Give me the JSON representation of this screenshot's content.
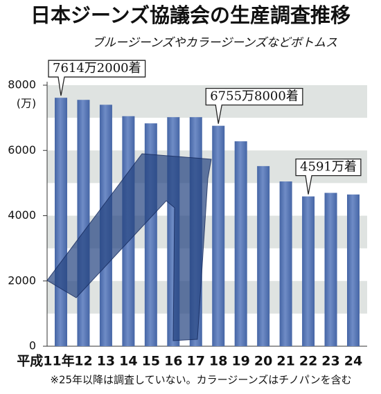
{
  "chart_data": {
    "type": "bar",
    "title": "日本ジーンズ協議会の生産調査推移",
    "subtitle": "ブルージーンズやカラージーンズなどボトムス",
    "y_axis_label": "(万)",
    "categories": [
      "平成11年",
      "12",
      "13",
      "14",
      "15",
      "16",
      "17",
      "18",
      "19",
      "20",
      "21",
      "22",
      "23",
      "24"
    ],
    "values": [
      7614.2,
      7550,
      7400,
      7050,
      6830,
      7020,
      7020,
      6755.8,
      6280,
      5520,
      5050,
      4591,
      4700,
      4650
    ],
    "value_labels": [
      "7614万2000着",
      null,
      null,
      null,
      null,
      null,
      null,
      "6755万8000着",
      null,
      null,
      null,
      "4591万着",
      null,
      null
    ],
    "color": "#4565a5",
    "ylim": [
      0,
      8000
    ],
    "yticks": [
      0,
      2000,
      4000,
      6000,
      8000
    ],
    "grid_bands": true,
    "footnote": "※25年以降は調査していない。カラージーンズはチノパンを含む"
  }
}
